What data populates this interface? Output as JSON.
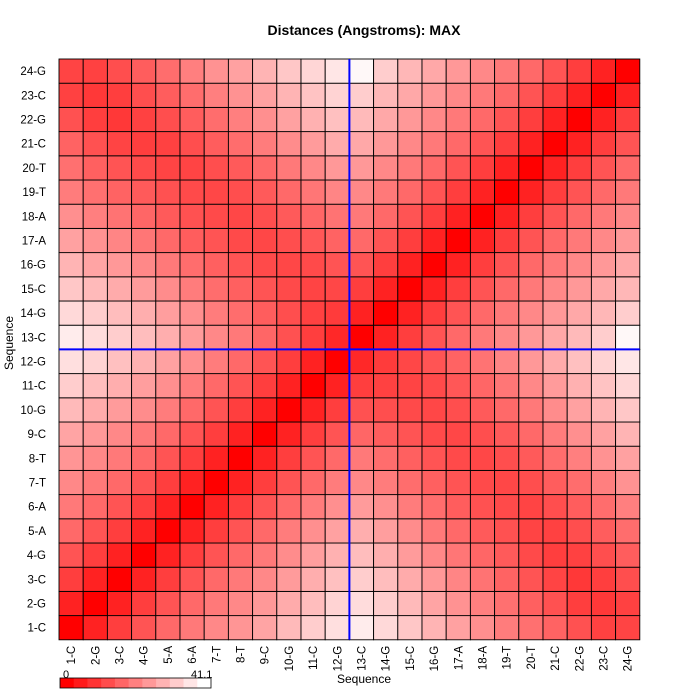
{
  "chart_data": {
    "type": "heatmap",
    "title": "Distances (Angstroms):  MAX",
    "xlabel": "Sequence",
    "ylabel": "Sequence",
    "labels": [
      "1-C",
      "2-G",
      "3-C",
      "4-G",
      "5-A",
      "6-A",
      "7-T",
      "8-T",
      "9-C",
      "10-G",
      "11-C",
      "12-G",
      "13-C",
      "14-G",
      "15-C",
      "16-G",
      "17-A",
      "18-A",
      "19-T",
      "20-T",
      "21-C",
      "22-G",
      "23-C",
      "24-G"
    ],
    "value_range": [
      0,
      41.1
    ],
    "colorbar": {
      "min_label": "0",
      "max_label": "41.1",
      "low_color": "#ff0000",
      "high_color": "#ffffff"
    },
    "divider": {
      "after_index": 12,
      "color": "#0000ff"
    },
    "matrix": [
      [
        0,
        5.5,
        10,
        13.5,
        17,
        19.5,
        22,
        24,
        26.5,
        30,
        33,
        36,
        38,
        35,
        32,
        29,
        26,
        23,
        20,
        18,
        16,
        13,
        10.5,
        11
      ],
      [
        5.5,
        0,
        5.5,
        10,
        13.5,
        17,
        19.5,
        22,
        24.5,
        27.5,
        30.5,
        34,
        35.5,
        33,
        30,
        26.5,
        23.5,
        20.5,
        18,
        15.5,
        13,
        10,
        9,
        10.5
      ],
      [
        10,
        5.5,
        0,
        5.5,
        10,
        13.5,
        17,
        19.5,
        22,
        25,
        28,
        31,
        33,
        30.5,
        27.5,
        24.5,
        21.5,
        18.5,
        16,
        13.5,
        11,
        9,
        10,
        12.5
      ],
      [
        13.5,
        10,
        5.5,
        0,
        5.5,
        10,
        13.5,
        17,
        19.5,
        22.5,
        25.5,
        28.5,
        30.5,
        28,
        25,
        22,
        19,
        16.5,
        14.5,
        12,
        10,
        10.5,
        12.5,
        15
      ],
      [
        17,
        13.5,
        10,
        5.5,
        0,
        5.5,
        10,
        13.5,
        17,
        20,
        23,
        26,
        28,
        25.5,
        22.5,
        19.5,
        17,
        14.5,
        13,
        11,
        10.5,
        12.5,
        15,
        17.5
      ],
      [
        19.5,
        17,
        13.5,
        10,
        5.5,
        0,
        5.5,
        10,
        13.5,
        17,
        20,
        23,
        25,
        23,
        20,
        17.5,
        15,
        13,
        12,
        11,
        12.5,
        15,
        17.5,
        20.5
      ],
      [
        22,
        19.5,
        17,
        13.5,
        10,
        5.5,
        0,
        5.5,
        10,
        13.5,
        17,
        20,
        22,
        20,
        17.5,
        15.5,
        13.5,
        12,
        11.5,
        12.5,
        15,
        17.5,
        20.5,
        23.5
      ],
      [
        24,
        22,
        19.5,
        17,
        13.5,
        10,
        5.5,
        0,
        5.5,
        10,
        13.5,
        17,
        19.5,
        17.5,
        15.5,
        13.5,
        12,
        11.5,
        12.5,
        14.5,
        17.5,
        20.5,
        23.5,
        26
      ],
      [
        26.5,
        24.5,
        22,
        19.5,
        17,
        13.5,
        10,
        5.5,
        0,
        5.5,
        10,
        13.5,
        16.5,
        15,
        13.5,
        12,
        11.5,
        12.5,
        14.5,
        17,
        20,
        23,
        26,
        29
      ],
      [
        30,
        27.5,
        25,
        22.5,
        20,
        17,
        13.5,
        10,
        5.5,
        0,
        5.5,
        10,
        13,
        12.5,
        12,
        11.5,
        12.5,
        14.5,
        17,
        19.5,
        22.5,
        26,
        29,
        32
      ],
      [
        33,
        30.5,
        28,
        25.5,
        23,
        20,
        17,
        13.5,
        10,
        5.5,
        0,
        5.5,
        10,
        10.5,
        11,
        12,
        14,
        16.5,
        19,
        22,
        25,
        28.5,
        31.5,
        34.5
      ],
      [
        36,
        34,
        31,
        28.5,
        26,
        23,
        20,
        17,
        13.5,
        10,
        5.5,
        0,
        6.5,
        9.5,
        11.5,
        13.5,
        16,
        18.5,
        21.5,
        24.5,
        27.5,
        31,
        34,
        37
      ],
      [
        38,
        35.5,
        33,
        30.5,
        28,
        25,
        22,
        19.5,
        16.5,
        13,
        10,
        6.5,
        0,
        5.5,
        10,
        13.5,
        17,
        19.5,
        22,
        24.5,
        27,
        30,
        33,
        40
      ],
      [
        35,
        33,
        30.5,
        28,
        25.5,
        23,
        20,
        17.5,
        15,
        12.5,
        10.5,
        9.5,
        5.5,
        0,
        5.5,
        10,
        13.5,
        17,
        19.5,
        22,
        24.5,
        27,
        29.5,
        33
      ],
      [
        32,
        30,
        27.5,
        25,
        22.5,
        20,
        17.5,
        15.5,
        13.5,
        12,
        11,
        11.5,
        10,
        5.5,
        0,
        5.5,
        10,
        13.5,
        17,
        19.5,
        22,
        24.5,
        27,
        29.5
      ],
      [
        29,
        26.5,
        24.5,
        22,
        19.5,
        17.5,
        15.5,
        13.5,
        12,
        11.5,
        12,
        13.5,
        13.5,
        10,
        5.5,
        0,
        5.5,
        10,
        13.5,
        17,
        19.5,
        22,
        24.5,
        27
      ],
      [
        26,
        23.5,
        21.5,
        19,
        17,
        15,
        13.5,
        12,
        11.5,
        12.5,
        14,
        16,
        17,
        13.5,
        10,
        5.5,
        0,
        5.5,
        10,
        13.5,
        17,
        19.5,
        22,
        24.5
      ],
      [
        23,
        20.5,
        18.5,
        16.5,
        14.5,
        13,
        12,
        11.5,
        12.5,
        14.5,
        16.5,
        18.5,
        19.5,
        17,
        13.5,
        10,
        5.5,
        0,
        5.5,
        10,
        13.5,
        17,
        19.5,
        22
      ],
      [
        20,
        18,
        16,
        14.5,
        13,
        12,
        11.5,
        12.5,
        14.5,
        17,
        19,
        21.5,
        22,
        19.5,
        17,
        13.5,
        10,
        5.5,
        0,
        5.5,
        10,
        13.5,
        17,
        19.5
      ],
      [
        18,
        15.5,
        13.5,
        12,
        11,
        11,
        12.5,
        14.5,
        17,
        19.5,
        22,
        24.5,
        24.5,
        22,
        19.5,
        17,
        13.5,
        10,
        5.5,
        0,
        5.5,
        10,
        13.5,
        17
      ],
      [
        16,
        13,
        11,
        10,
        10.5,
        12.5,
        15,
        17.5,
        20,
        22.5,
        25,
        27.5,
        27,
        24.5,
        22,
        19.5,
        17,
        13.5,
        10,
        5.5,
        0,
        5.5,
        10,
        13.5
      ],
      [
        13,
        10,
        9,
        10.5,
        12.5,
        15,
        17.5,
        20.5,
        23,
        26,
        28.5,
        31,
        30,
        27,
        24.5,
        22,
        19.5,
        17,
        13.5,
        10,
        5.5,
        0,
        5.5,
        10
      ],
      [
        10.5,
        9,
        10,
        12.5,
        15,
        17.5,
        20.5,
        23.5,
        26,
        29,
        31.5,
        34,
        33,
        29.5,
        27,
        24.5,
        22,
        19.5,
        17,
        13.5,
        10,
        5.5,
        0,
        5.5
      ],
      [
        11,
        10.5,
        12.5,
        15,
        17.5,
        20.5,
        23.5,
        26,
        29,
        32,
        34.5,
        37,
        40,
        33,
        29.5,
        27,
        24.5,
        22,
        19.5,
        17,
        13.5,
        10,
        5.5,
        0
      ]
    ]
  }
}
